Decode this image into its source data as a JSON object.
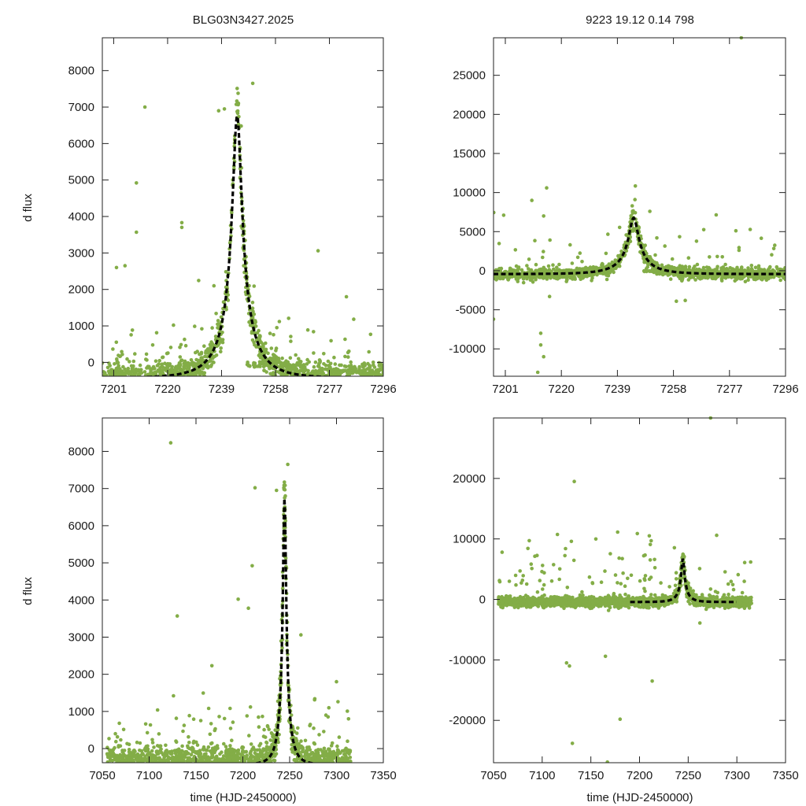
{
  "titles": {
    "left": "BLG03N3427.2025",
    "right": "9223  19.12  0.14  798"
  },
  "axis_labels": {
    "ylabel": "d flux",
    "xlabel": "time (HJD-2450000)"
  },
  "colors": {
    "points": "#83ad47",
    "model": "#000000",
    "frame": "#222222"
  },
  "model": {
    "type": "paczynski",
    "t0": 7244.5,
    "tE": 12.0,
    "peak_dflux": 6750,
    "baseline_dflux": -430
  },
  "chart_data": [
    {
      "id": "top-left",
      "type": "scatter",
      "title": "BLG03N3427.2025",
      "ylabel": "d flux",
      "xlabel": "",
      "xlim": [
        7197,
        7296
      ],
      "ylim": [
        -380,
        8900
      ],
      "xticks": [
        7201,
        7220,
        7239,
        7258,
        7277,
        7296
      ],
      "yticks": [
        0,
        1000,
        2000,
        3000,
        4000,
        5000,
        6000,
        7000,
        8000
      ],
      "gen": {
        "x0": 7197,
        "x1": 7296,
        "n": 1500,
        "noise": 200,
        "outliers": 90,
        "seed": 11,
        "gaps": [
          [
            7218,
            7232
          ],
          [
            7248,
            7255
          ],
          [
            7262,
            7268
          ],
          [
            7287,
            7296
          ]
        ],
        "flat_y": -80,
        "flat_n": 60,
        "extra": [
          [
            7212,
            7000
          ],
          [
            7238,
            6900
          ],
          [
            7240,
            6950
          ],
          [
            7250,
            7650
          ],
          [
            7209,
            4920
          ],
          [
            7209,
            3570
          ],
          [
            7225,
            3830
          ],
          [
            7225,
            3700
          ],
          [
            7273,
            3060
          ],
          [
            7283,
            1800
          ],
          [
            7202,
            2600
          ],
          [
            7205,
            2650
          ]
        ]
      }
    },
    {
      "id": "top-right",
      "type": "scatter",
      "title": "9223  19.12  0.14  798",
      "ylabel": "",
      "xlabel": "",
      "xlim": [
        7197,
        7296
      ],
      "ylim": [
        -13500,
        29800
      ],
      "xticks": [
        7201,
        7220,
        7239,
        7258,
        7277,
        7296
      ],
      "yticks": [
        -10000,
        -5000,
        0,
        5000,
        10000,
        15000,
        20000,
        25000
      ],
      "gen": {
        "x0": 7197,
        "x1": 7296,
        "n": 1500,
        "noise": 350,
        "outliers": 60,
        "seed": 23,
        "gaps": [
          [
            7218,
            7232
          ],
          [
            7248,
            7255
          ],
          [
            7262,
            7268
          ]
        ],
        "flat_y": -50,
        "flat_n": 50,
        "extra": [
          [
            7210,
            9000
          ],
          [
            7215,
            10600
          ],
          [
            7214,
            7000
          ],
          [
            7213,
            -9500
          ],
          [
            7212,
            -13000
          ],
          [
            7214,
            -11000
          ],
          [
            7213,
            -8000
          ],
          [
            7259,
            -3900
          ],
          [
            7281,
            29800
          ],
          [
            7197,
            -6200
          ],
          [
            7216,
            -3300
          ],
          [
            7250,
            7600
          ],
          [
            7262,
            -3800
          ]
        ]
      }
    },
    {
      "id": "bottom-left",
      "type": "scatter",
      "title": "",
      "ylabel": "d flux",
      "xlabel": "time (HJD-2450000)",
      "xlim": [
        7050,
        7350
      ],
      "ylim": [
        -380,
        8900
      ],
      "xticks": [
        7050,
        7100,
        7150,
        7200,
        7250,
        7300,
        7350
      ],
      "yticks": [
        0,
        1000,
        2000,
        3000,
        4000,
        5000,
        6000,
        7000,
        8000
      ],
      "gen": {
        "x0": 7055,
        "x1": 7315,
        "n": 1900,
        "noise": 220,
        "outliers": 150,
        "seed": 37,
        "gaps": [
          [
            7182,
            7188
          ]
        ],
        "flat_y": -80,
        "flat_n": 60,
        "extra": [
          [
            7123,
            8230
          ],
          [
            7213,
            7020
          ],
          [
            7236,
            6950
          ],
          [
            7248,
            7650
          ],
          [
            7130,
            3570
          ],
          [
            7126,
            1420
          ],
          [
            7109,
            1040
          ],
          [
            7167,
            2230
          ],
          [
            7195,
            4020
          ],
          [
            7206,
            3780
          ],
          [
            7262,
            3060
          ],
          [
            7210,
            4920
          ],
          [
            7300,
            1800
          ]
        ]
      }
    },
    {
      "id": "bottom-right",
      "type": "scatter",
      "title": "",
      "ylabel": "",
      "xlabel": "time (HJD-2450000)",
      "xlim": [
        7050,
        7350
      ],
      "ylim": [
        -27000,
        30000
      ],
      "xticks": [
        7050,
        7100,
        7150,
        7200,
        7250,
        7300,
        7350
      ],
      "yticks": [
        -20000,
        -10000,
        0,
        10000,
        20000
      ],
      "gen": {
        "x0": 7055,
        "x1": 7315,
        "n": 1900,
        "noise": 400,
        "outliers": 110,
        "seed": 53,
        "gaps": [
          [
            7182,
            7188
          ]
        ],
        "flat_y": -50,
        "flat_n": 50,
        "extra": [
          [
            7133,
            19500
          ],
          [
            7124,
            8400
          ],
          [
            7130,
            9600
          ],
          [
            7131,
            -23800
          ],
          [
            7128,
            -11000
          ],
          [
            7125,
            -10500
          ],
          [
            7180,
            -19800
          ],
          [
            7167,
            -26900
          ],
          [
            7210,
            10500
          ],
          [
            7212,
            9700
          ],
          [
            7213,
            -13500
          ],
          [
            7273,
            30000
          ],
          [
            7262,
            -3900
          ],
          [
            7165,
            -9400
          ]
        ]
      }
    }
  ]
}
